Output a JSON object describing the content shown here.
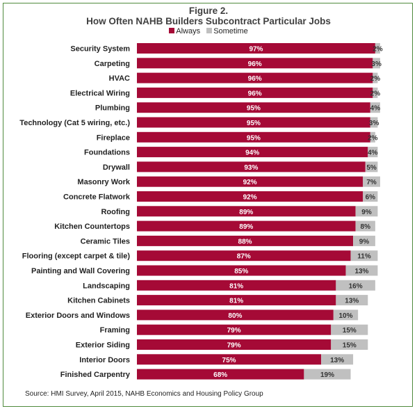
{
  "chart_data": {
    "type": "bar",
    "orientation": "horizontal",
    "stacked": true,
    "title": "Figure 2.",
    "subtitle": "How Often NAHB Builders Subcontract Particular Jobs",
    "source": "Source: HMI Survey,  April 2015,  NAHB Economics and Housing Policy Group",
    "xlim": [
      0,
      100
    ],
    "legend_position": "top",
    "colors": {
      "Always": "#a50a36",
      "Sometime": "#c0c0c0"
    },
    "categories": [
      "Security System",
      "Carpeting",
      "HVAC",
      "Electrical Wiring",
      "Plumbing",
      "Technology (Cat 5 wiring, etc.)",
      "Fireplace",
      "Foundations",
      "Drywall",
      "Masonry Work",
      "Concrete Flatwork",
      "Roofing",
      "Kitchen Countertops",
      "Ceramic Tiles",
      "Flooring (except carpet & tile)",
      "Painting and Wall Covering",
      "Landscaping",
      "Kitchen Cabinets",
      "Exterior Doors and Windows",
      "Framing",
      "Exterior Siding",
      "Interior Doors",
      "Finished Carpentry"
    ],
    "series": [
      {
        "name": "Always",
        "values": [
          97,
          96,
          96,
          96,
          95,
          95,
          95,
          94,
          93,
          92,
          92,
          89,
          89,
          88,
          87,
          85,
          81,
          81,
          80,
          79,
          79,
          75,
          68
        ]
      },
      {
        "name": "Sometime",
        "values": [
          2,
          3,
          2,
          2,
          4,
          3,
          2,
          4,
          5,
          7,
          6,
          9,
          8,
          9,
          11,
          13,
          16,
          13,
          10,
          15,
          15,
          13,
          19
        ]
      }
    ]
  }
}
